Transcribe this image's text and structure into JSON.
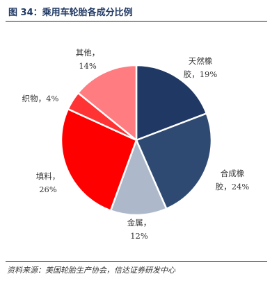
{
  "figure": {
    "title": "图 34：乘用车轮胎各成分比例",
    "source": "资料来源：美国轮胎生产协会，信达证券研发中心"
  },
  "chart_data": {
    "type": "pie",
    "title": "图 34：乘用车轮胎各成分比例",
    "slices": [
      {
        "name": "天然橡胶",
        "label_lines": [
          "天然橡",
          "胶，19%"
        ],
        "value": 19,
        "color": "#1f3864"
      },
      {
        "name": "合成橡胶",
        "label_lines": [
          "合成橡",
          "胶，24%"
        ],
        "value": 24,
        "color": "#2f4a72"
      },
      {
        "name": "金属",
        "label_lines": [
          "金属，",
          "12%"
        ],
        "value": 12,
        "color": "#adb9ca"
      },
      {
        "name": "填料",
        "label_lines": [
          "填料，",
          "26%"
        ],
        "value": 26,
        "color": "#ff0000"
      },
      {
        "name": "织物",
        "label_lines": [
          "织物，4%"
        ],
        "value": 4,
        "color": "#ff3333"
      },
      {
        "name": "其他",
        "label_lines": [
          "其他，",
          "14%"
        ],
        "value": 14,
        "color": "#ff7c80"
      }
    ],
    "start": "12 o'clock",
    "direction": "clockwise"
  }
}
